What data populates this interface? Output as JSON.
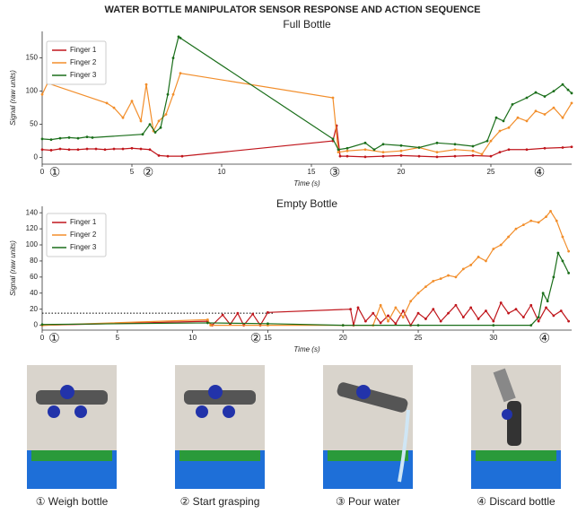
{
  "title": "WATER BOTTLE MANIPULATOR SENSOR RESPONSE AND ACTION SEQUENCE",
  "chart_data": [
    {
      "type": "line",
      "title": "Full Bottle",
      "x_label": "Time (s)",
      "y_label": "Signal (raw units)",
      "xlim": [
        0,
        29.5
      ],
      "ylim": [
        -10,
        190
      ],
      "xticks": [
        0,
        5,
        10,
        15,
        20,
        25
      ],
      "yticks": [
        0,
        50,
        100,
        150
      ],
      "legend": "upper-left",
      "annotations": [
        {
          "text": "①",
          "x": 0.7
        },
        {
          "text": "②",
          "x": 5.9
        },
        {
          "text": "③",
          "x": 16.3
        },
        {
          "text": "④",
          "x": 27.7
        }
      ],
      "series": [
        {
          "name": "Finger 1",
          "color": "#c0161c",
          "x": [
            0,
            0.5,
            1,
            1.5,
            2,
            2.5,
            3,
            3.5,
            4,
            4.5,
            5,
            5.5,
            6,
            6.5,
            7,
            7.8,
            16.2,
            16.4,
            16.6,
            17,
            18,
            19,
            20,
            21,
            22,
            23,
            24,
            25,
            25.5,
            26,
            27,
            28,
            29,
            29.5
          ],
          "values": [
            12,
            11,
            13,
            12,
            12,
            13,
            13,
            12,
            13,
            13,
            14,
            13,
            12,
            3,
            2,
            2,
            25,
            48,
            2,
            2,
            1,
            2,
            3,
            2,
            1,
            2,
            3,
            2,
            8,
            12,
            12,
            14,
            15,
            16
          ]
        },
        {
          "name": "Finger 2",
          "color": "#f28e2b",
          "x": [
            0,
            0.3,
            3.6,
            4,
            4.5,
            5,
            5.5,
            5.8,
            6.2,
            6.5,
            6.9,
            7.3,
            7.7,
            16.2,
            16.5,
            17,
            18,
            19,
            20,
            21,
            22,
            23,
            24,
            24.5,
            25,
            25.5,
            26,
            26.5,
            27,
            27.5,
            28,
            28.5,
            29,
            29.5
          ],
          "values": [
            95,
            112,
            82,
            75,
            60,
            85,
            55,
            110,
            40,
            55,
            65,
            95,
            127,
            90,
            8,
            10,
            12,
            8,
            10,
            15,
            8,
            12,
            10,
            5,
            25,
            40,
            45,
            60,
            55,
            70,
            65,
            75,
            60,
            82
          ]
        },
        {
          "name": "Finger 3",
          "color": "#1a6e1a",
          "x": [
            0,
            0.5,
            1,
            1.5,
            2,
            2.5,
            2.8,
            5.6,
            6,
            6.3,
            6.6,
            7,
            7.3,
            7.6,
            7.7,
            16.2,
            16.5,
            17,
            18,
            18.5,
            19,
            20,
            21,
            22,
            23,
            24,
            24.8,
            25.3,
            25.7,
            26.2,
            27,
            27.5,
            28,
            28.5,
            29,
            29.3,
            29.5
          ],
          "values": [
            28,
            27,
            29,
            30,
            29,
            31,
            30,
            35,
            50,
            38,
            45,
            95,
            150,
            182,
            180,
            28,
            12,
            14,
            22,
            12,
            20,
            18,
            15,
            22,
            20,
            17,
            25,
            60,
            55,
            80,
            90,
            98,
            92,
            100,
            110,
            102,
            97
          ]
        }
      ]
    },
    {
      "type": "line",
      "title": "Empty Bottle",
      "x_label": "Time (s)",
      "y_label": "Signal (raw units)",
      "xlim": [
        0,
        35.2
      ],
      "ylim": [
        -6,
        148
      ],
      "xticks": [
        0,
        5,
        10,
        15,
        20,
        25,
        30
      ],
      "yticks": [
        0,
        20,
        40,
        60,
        80,
        100,
        120,
        140
      ],
      "legend": "upper-left",
      "reference_line": {
        "y": 15,
        "x": [
          0,
          15.4
        ]
      },
      "annotations": [
        {
          "text": "①",
          "x": 0.8
        },
        {
          "text": "②",
          "x": 14.2
        },
        {
          "text": "④",
          "x": 33.4
        }
      ],
      "series": [
        {
          "name": "Finger 1",
          "color": "#c0161c",
          "x": [
            0,
            11,
            11.3,
            12,
            12.5,
            13,
            13.4,
            14,
            14.5,
            15,
            20.5,
            20.7,
            21,
            21.5,
            22,
            22.5,
            23,
            23.5,
            24,
            24.5,
            25,
            25.5,
            26,
            26.5,
            27,
            27.5,
            28,
            28.5,
            29,
            29.5,
            30,
            30.5,
            31,
            31.5,
            32,
            32.5,
            33,
            33.5,
            34,
            34.5,
            35
          ],
          "values": [
            0,
            5,
            0,
            13,
            1,
            15,
            0,
            14,
            0,
            16,
            20,
            0,
            22,
            5,
            15,
            3,
            12,
            2,
            18,
            0,
            15,
            8,
            20,
            5,
            15,
            25,
            10,
            22,
            8,
            18,
            5,
            28,
            15,
            20,
            10,
            25,
            5,
            22,
            12,
            18,
            5
          ]
        },
        {
          "name": "Finger 2",
          "color": "#f28e2b",
          "x": [
            0,
            11,
            11.2,
            15,
            20,
            22,
            22.5,
            23,
            23.5,
            24,
            24.5,
            25,
            25.5,
            26,
            26.5,
            27,
            27.5,
            28,
            28.5,
            29,
            29.5,
            30,
            30.5,
            31,
            31.5,
            32,
            32.5,
            33,
            33.5,
            33.8,
            34.2,
            34.6,
            35
          ],
          "values": [
            0,
            7,
            0,
            0,
            0,
            0,
            25,
            5,
            22,
            10,
            30,
            40,
            48,
            55,
            58,
            62,
            60,
            70,
            75,
            85,
            80,
            95,
            100,
            110,
            120,
            125,
            130,
            128,
            135,
            142,
            130,
            110,
            92
          ]
        },
        {
          "name": "Finger 3",
          "color": "#1a6e1a",
          "x": [
            0,
            11,
            15,
            20,
            25,
            30,
            32.5,
            33,
            33.3,
            33.6,
            34,
            34.3,
            34.6,
            35
          ],
          "values": [
            1,
            3,
            2,
            0,
            0,
            0,
            0,
            10,
            40,
            30,
            60,
            90,
            80,
            65
          ]
        }
      ]
    }
  ],
  "captions": [
    "① Weigh bottle",
    "② Start grasping",
    "③ Pour water",
    "④ Discard bottle"
  ]
}
